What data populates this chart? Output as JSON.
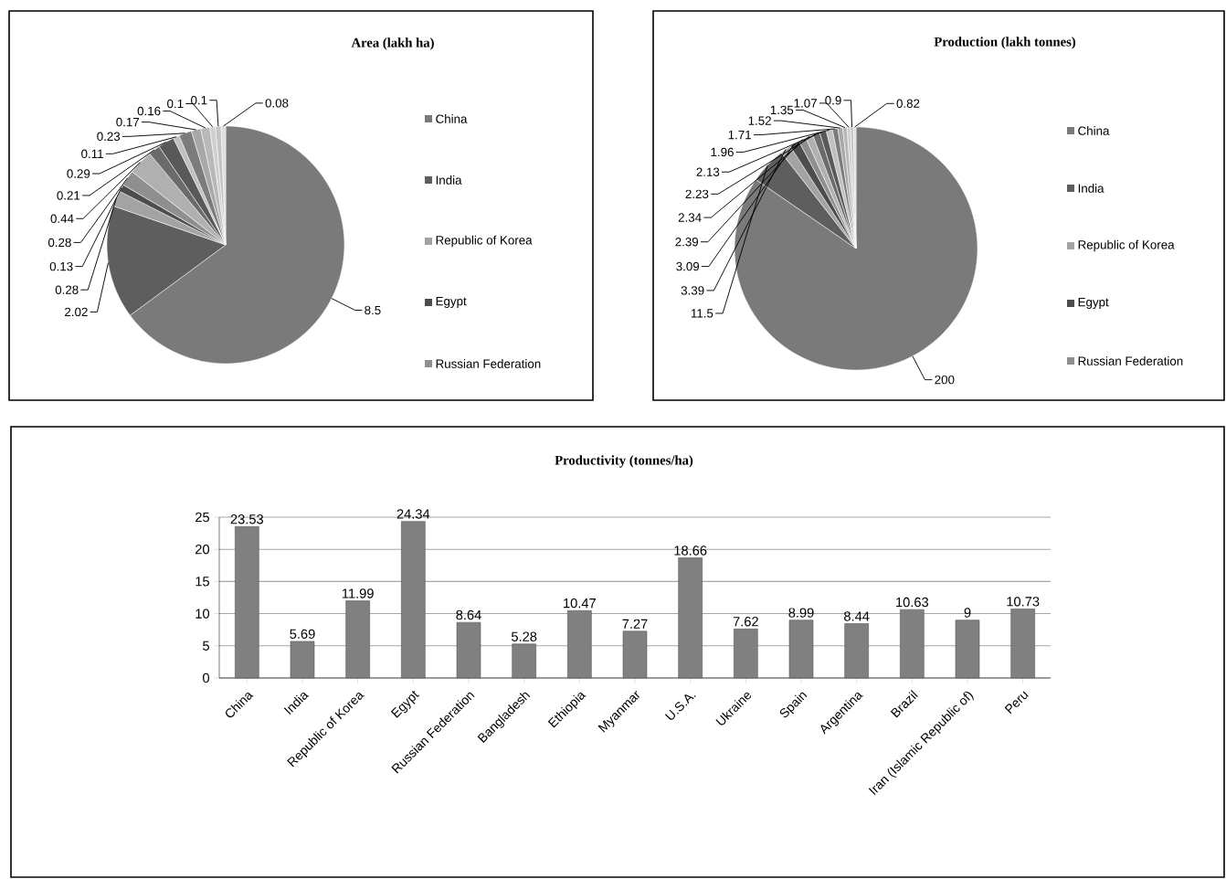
{
  "chart_data": [
    {
      "type": "pie",
      "title": "Area (lakh ha)",
      "categories": [
        "China",
        "India",
        "Republic of Korea",
        "Egypt",
        "Russian Federation",
        null,
        null,
        null,
        null,
        null,
        null,
        null,
        null,
        null,
        null
      ],
      "values": [
        8.5,
        2.02,
        0.28,
        0.13,
        0.28,
        0.44,
        0.21,
        0.29,
        0.11,
        0.23,
        0.17,
        0.16,
        0.1,
        0.1,
        0.08
      ],
      "colors": [
        "#7a7a7a",
        "#5e5e5e",
        "#a3a3a3",
        "#4d4d4d",
        "#8f8f8f",
        "#b0b0b0",
        "#6b6b6b",
        "#595959",
        "#c0c0c0",
        "#7c7c7c",
        "#a8a8a8",
        "#b8b8b8",
        "#cfcfcf",
        "#c4c4c4",
        "#dedede"
      ],
      "data_labels": true,
      "legend": "right"
    },
    {
      "type": "pie",
      "title": "Production (lakh tonnes)",
      "categories": [
        "China",
        "India",
        "Republic of Korea",
        "Egypt",
        "Russian Federation",
        null,
        null,
        null,
        null,
        null,
        null,
        null,
        null,
        null,
        null
      ],
      "values": [
        200,
        11.5,
        3.39,
        3.09,
        2.39,
        2.34,
        2.23,
        2.13,
        1.96,
        1.71,
        1.52,
        1.35,
        1.07,
        0.9,
        0.82
      ],
      "colors": [
        "#7a7a7a",
        "#5e5e5e",
        "#a3a3a3",
        "#4d4d4d",
        "#8f8f8f",
        "#b0b0b0",
        "#6b6b6b",
        "#595959",
        "#c0c0c0",
        "#7c7c7c",
        "#a8a8a8",
        "#b8b8b8",
        "#cfcfcf",
        "#c4c4c4",
        "#dedede"
      ],
      "data_labels": true,
      "legend": "right"
    },
    {
      "type": "bar",
      "title": "Productivity (tonnes/ha)",
      "categories": [
        "China",
        "India",
        "Republic of Korea",
        "Egypt",
        "Russian Federation",
        "Bangladesh",
        "Ethiopia",
        "Myanmar",
        "U.S.A.",
        "Ukraine",
        "Spain",
        "Argentina",
        "Brazil",
        "Iran (Islamic Republic of)",
        "Peru"
      ],
      "values": [
        23.53,
        5.69,
        11.99,
        24.34,
        8.64,
        5.28,
        10.47,
        7.27,
        18.66,
        7.62,
        8.99,
        8.44,
        10.63,
        9,
        10.73
      ],
      "color": "#808080",
      "ylim": [
        0,
        25
      ],
      "yticks": [
        0,
        5,
        10,
        15,
        20,
        25
      ],
      "grid": "y",
      "data_labels": true
    }
  ]
}
